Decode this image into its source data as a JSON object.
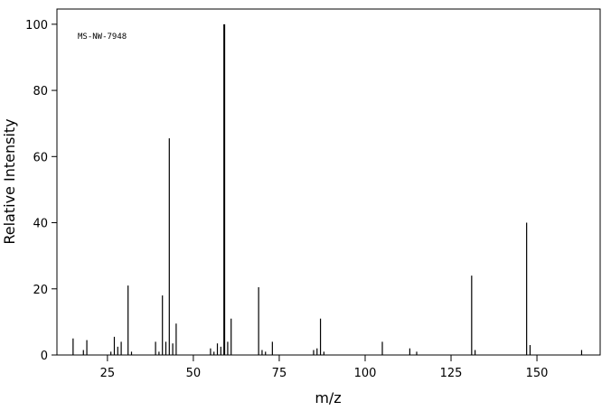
{
  "chart_data": {
    "type": "stem",
    "annotation": "MS-NW-7948",
    "x_label": "m/z",
    "y_label": "Relative Intensity",
    "x": [
      15,
      18,
      19,
      26,
      27,
      28,
      29,
      31,
      32,
      39,
      40,
      41,
      42,
      43,
      44,
      45,
      55,
      56,
      57,
      58,
      59,
      60,
      61,
      69,
      70,
      71,
      73,
      85,
      86,
      87,
      88,
      105,
      113,
      115,
      131,
      132,
      147,
      148,
      163
    ],
    "values": [
      5,
      1.5,
      4.5,
      1,
      5.5,
      2.5,
      4,
      21,
      1,
      4,
      1,
      18,
      4,
      65.5,
      3.5,
      9.5,
      2,
      1,
      3.5,
      2.5,
      100,
      4,
      11,
      20.5,
      1.5,
      1,
      4,
      1.5,
      2,
      11,
      1,
      4,
      2,
      1,
      24,
      1.5,
      40,
      3,
      1.5
    ],
    "color": "#000000",
    "xlim": [
      10.3,
      168.4
    ],
    "xticks": [
      25,
      50,
      75,
      100,
      125,
      150
    ],
    "ylim": [
      0,
      104.6
    ],
    "yticks": [
      0,
      20,
      40,
      60,
      80,
      100
    ]
  }
}
